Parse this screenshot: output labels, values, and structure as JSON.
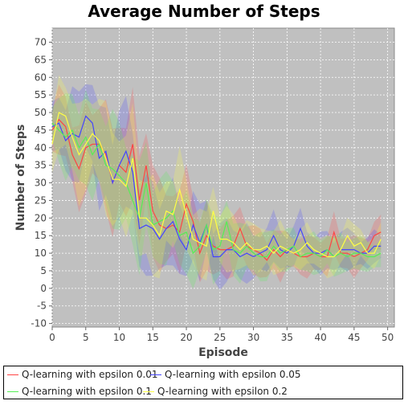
{
  "chart_data": {
    "type": "line",
    "title": "Average Number of Steps",
    "xlabel": "Episode",
    "ylabel": "Number of Steps",
    "xlim": [
      0,
      51
    ],
    "ylim": [
      -11,
      74
    ],
    "xticks": [
      0,
      5,
      10,
      15,
      20,
      25,
      30,
      35,
      40,
      45,
      50
    ],
    "yticks": [
      -10,
      -5,
      0,
      5,
      10,
      15,
      20,
      25,
      30,
      35,
      40,
      45,
      50,
      55,
      60,
      65,
      70
    ],
    "grid": true,
    "legend_position": "bottom",
    "x": [
      0,
      1,
      2,
      3,
      4,
      5,
      6,
      7,
      8,
      9,
      10,
      11,
      12,
      13,
      14,
      15,
      16,
      17,
      18,
      19,
      20,
      21,
      22,
      23,
      24,
      25,
      26,
      27,
      28,
      29,
      30,
      31,
      32,
      33,
      34,
      35,
      36,
      37,
      38,
      39,
      40,
      41,
      42,
      43,
      44,
      45,
      46,
      47,
      48,
      49
    ],
    "series": [
      {
        "name": "Q-learning with epsilon 0.01",
        "color": "#ff4444",
        "values": [
          45,
          48,
          46,
          38,
          34,
          40,
          41,
          41,
          38,
          30,
          35,
          33,
          41,
          25,
          35,
          22,
          18,
          17,
          18,
          16,
          24,
          19,
          10,
          15,
          12,
          11,
          11,
          12,
          17,
          12,
          11,
          10,
          8,
          11,
          9,
          11,
          10,
          9,
          9,
          10,
          9,
          9,
          16,
          10,
          10,
          9,
          10,
          11,
          15,
          16
        ],
        "band": [
          6,
          8,
          9,
          10,
          11,
          11,
          10,
          12,
          13,
          14,
          14,
          13,
          13,
          13,
          12,
          12,
          11,
          11,
          10,
          10,
          10,
          9,
          9,
          8,
          8,
          8,
          8,
          7,
          7,
          7,
          6,
          6,
          6,
          6,
          6,
          5,
          5,
          5,
          5,
          5,
          5,
          5,
          5,
          5,
          5,
          5,
          4,
          4,
          4,
          4
        ]
      },
      {
        "name": "Q-learning with epsilon 0.05",
        "color": "#4444ff",
        "values": [
          46,
          47,
          42,
          44,
          43,
          49,
          47,
          37,
          39,
          30,
          35,
          39,
          33,
          17,
          18,
          17,
          14,
          17,
          19,
          14,
          11,
          18,
          13,
          18,
          9,
          9,
          11,
          11,
          9,
          10,
          9,
          10,
          11,
          15,
          11,
          10,
          12,
          17,
          12,
          10,
          10,
          11,
          9,
          11,
          11,
          11,
          10,
          10,
          12,
          12
        ],
        "band": [
          6,
          9,
          10,
          11,
          12,
          12,
          11,
          12,
          13,
          14,
          14,
          13,
          13,
          13,
          12,
          12,
          11,
          11,
          10,
          10,
          10,
          9,
          9,
          8,
          8,
          8,
          8,
          7,
          7,
          7,
          6,
          6,
          6,
          6,
          6,
          5,
          5,
          5,
          5,
          5,
          5,
          5,
          5,
          5,
          5,
          5,
          4,
          4,
          4,
          4
        ]
      },
      {
        "name": "Q-learning with epsilon 0.1",
        "color": "#55ee55",
        "values": [
          47,
          45,
          43,
          45,
          40,
          43,
          38,
          41,
          35,
          34,
          32,
          30,
          25,
          20,
          30,
          18,
          19,
          20,
          22,
          15,
          16,
          10,
          12,
          18,
          11,
          12,
          19,
          11,
          10,
          12,
          10,
          9,
          9,
          12,
          10,
          11,
          12,
          9,
          10,
          10,
          9,
          11,
          9,
          10,
          9,
          10,
          10,
          9,
          9,
          10
        ],
        "band": [
          6,
          9,
          10,
          11,
          12,
          12,
          11,
          12,
          13,
          14,
          14,
          13,
          13,
          13,
          12,
          12,
          11,
          11,
          10,
          10,
          10,
          9,
          9,
          8,
          8,
          8,
          8,
          7,
          7,
          7,
          6,
          6,
          6,
          6,
          6,
          5,
          5,
          5,
          5,
          5,
          5,
          5,
          5,
          5,
          5,
          5,
          4,
          4,
          4,
          4
        ]
      },
      {
        "name": "Q-learning with epsilon 0.2",
        "color": "#ffff44",
        "values": [
          41,
          50,
          49,
          43,
          38,
          41,
          44,
          42,
          37,
          31,
          31,
          29,
          37,
          20,
          20,
          18,
          15,
          22,
          21,
          28,
          21,
          14,
          13,
          12,
          22,
          14,
          14,
          13,
          11,
          13,
          11,
          11,
          12,
          10,
          12,
          11,
          10,
          11,
          13,
          11,
          10,
          9,
          9,
          11,
          15,
          12,
          13,
          10,
          10,
          14
        ],
        "band": [
          7,
          9,
          10,
          11,
          12,
          12,
          11,
          12,
          13,
          14,
          14,
          13,
          13,
          13,
          12,
          12,
          11,
          11,
          10,
          10,
          10,
          9,
          9,
          8,
          8,
          8,
          8,
          7,
          7,
          7,
          6,
          6,
          6,
          6,
          6,
          5,
          5,
          5,
          5,
          5,
          5,
          5,
          5,
          5,
          5,
          5,
          4,
          4,
          4,
          4
        ]
      }
    ]
  }
}
